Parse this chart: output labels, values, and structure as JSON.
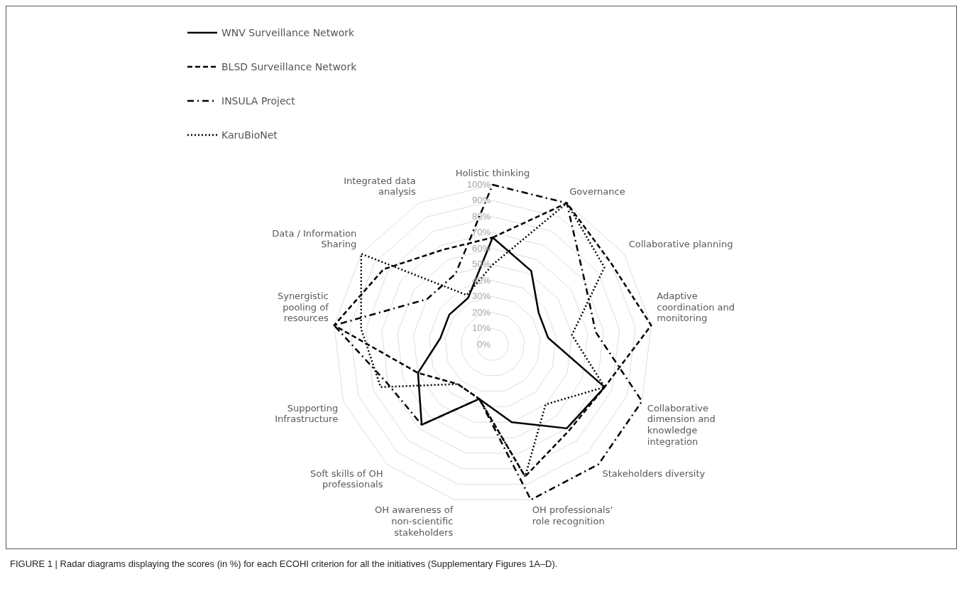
{
  "chart_data": {
    "type": "radar",
    "categories": [
      "Holistic thinking",
      "Governance",
      "Collaborative planning",
      "Adaptive coordination and monitoring",
      "Collaborative dimension and knowledge integration",
      "Stakeholders diversity",
      "OH professionals’ role recognition",
      "OH awareness of non-scientific stakeholders",
      "Soft skills of OH professionals",
      "Supporting Infrastructure",
      "Synergistic pooling of resources",
      "Data / Information Sharing",
      "Integrated data analysis"
    ],
    "series": [
      {
        "name": "WNV Surveillance Network",
        "color": "#000000",
        "line_style": "solid",
        "values": [
          67,
          52,
          35,
          35,
          75,
          70,
          50,
          35,
          67,
          50,
          33,
          33,
          33
        ]
      },
      {
        "name": "BLSD Surveillance Network",
        "color": "#000000",
        "line_style": "dashed",
        "values": [
          67,
          100,
          90,
          100,
          75,
          72,
          85,
          35,
          33,
          50,
          100,
          83,
          67
        ]
      },
      {
        "name": "INSULA Project",
        "color": "#000000",
        "line_style": "dashdot",
        "values": [
          100,
          100,
          70,
          65,
          100,
          100,
          100,
          35,
          67,
          70,
          100,
          50,
          50
        ]
      },
      {
        "name": "KaruBioNet",
        "color": "#000000",
        "line_style": "dotted",
        "values": [
          50,
          100,
          85,
          50,
          75,
          50,
          85,
          35,
          33,
          75,
          83,
          100,
          35
        ]
      }
    ],
    "ylim": [
      0,
      100
    ],
    "yticks": [
      {
        "value": 0,
        "label": "0%"
      },
      {
        "value": 10,
        "label": "10%"
      },
      {
        "value": 20,
        "label": "20%"
      },
      {
        "value": 30,
        "label": "30%"
      },
      {
        "value": 40,
        "label": "40%"
      },
      {
        "value": 50,
        "label": "50%"
      },
      {
        "value": 60,
        "label": "60%"
      },
      {
        "value": 70,
        "label": "70%"
      },
      {
        "value": 80,
        "label": "80%"
      },
      {
        "value": 90,
        "label": "90%"
      },
      {
        "value": 100,
        "label": "100%"
      }
    ],
    "grid": true,
    "marker": "none",
    "legend": "top left",
    "annotations": [
      "FIGURE 1 | Radar diagrams displaying the scores (in %) for each ECOHI criterion for all the initiatives (Supplementary Figures 1A–D)."
    ]
  }
}
